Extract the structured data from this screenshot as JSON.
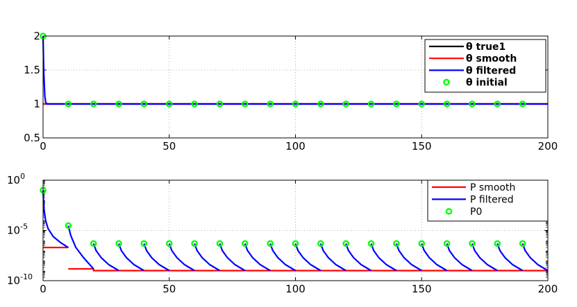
{
  "chart_data": [
    {
      "type": "line",
      "x_ticks": [
        "0",
        "50",
        "100",
        "150",
        "200"
      ],
      "y_ticks": [
        "0.5",
        "1",
        "1.5",
        "2"
      ],
      "xlim": [
        0,
        200
      ],
      "ylim": [
        0.5,
        2
      ],
      "grid": true,
      "legend_position": "top-right",
      "series": [
        {
          "name": "θ true1",
          "color": "#000000",
          "kind": "line",
          "points": [
            [
              0,
              1
            ],
            [
              200,
              1
            ]
          ]
        },
        {
          "name": "θ smooth",
          "color": "#ff0000",
          "kind": "line",
          "points": [
            [
              0,
              1
            ],
            [
              200,
              1
            ]
          ]
        },
        {
          "name": "θ filtered",
          "color": "#0000ff",
          "kind": "line",
          "points": [
            [
              0,
              2
            ],
            [
              0.3,
              1.45
            ],
            [
              0.7,
              1.12
            ],
            [
              1,
              1.03
            ],
            [
              1.5,
              1
            ],
            [
              200,
              1
            ]
          ]
        },
        {
          "name": "θ initial",
          "color": "#00ff00",
          "kind": "marker",
          "points": [
            [
              0,
              2
            ],
            [
              10,
              1
            ],
            [
              20,
              1
            ],
            [
              30,
              1
            ],
            [
              40,
              1
            ],
            [
              50,
              1
            ],
            [
              60,
              1
            ],
            [
              70,
              1
            ],
            [
              80,
              1
            ],
            [
              90,
              1
            ],
            [
              100,
              1
            ],
            [
              110,
              1
            ],
            [
              120,
              1
            ],
            [
              130,
              1
            ],
            [
              140,
              1
            ],
            [
              150,
              1
            ],
            [
              160,
              1
            ],
            [
              170,
              1
            ],
            [
              180,
              1
            ],
            [
              190,
              1
            ]
          ]
        }
      ]
    },
    {
      "type": "line",
      "y_scale": "log",
      "x_ticks": [
        "0",
        "50",
        "100",
        "150",
        "200"
      ],
      "y_ticks": [
        {
          "base": "10",
          "exp": "0"
        },
        {
          "base": "10",
          "exp": "-5"
        },
        {
          "base": "10",
          "exp": "-10"
        }
      ],
      "xlim": [
        0,
        200
      ],
      "ylim": [
        1e-10,
        1
      ],
      "grid": true,
      "legend_position": "top-right",
      "series": [
        {
          "name": "P smooth",
          "color": "#ff0000",
          "kind": "line",
          "segments": [
            [
              [
                0,
                2e-07
              ],
              [
                10,
                2e-07
              ]
            ],
            [
              [
                10,
                1.5e-09
              ],
              [
                20,
                1.5e-09
              ],
              [
                20,
                1e-09
              ],
              [
                200,
                1e-09
              ]
            ]
          ]
        },
        {
          "name": "P filtered",
          "color": "#0000ff",
          "kind": "line",
          "segments": [
            [
              [
                0,
                0.1
              ],
              [
                0.3,
                0.002
              ],
              [
                1,
                0.0001
              ],
              [
                2,
                1.5e-05
              ],
              [
                4,
                2.5e-06
              ],
              [
                7,
                6e-07
              ],
              [
                10,
                2e-07
              ]
            ],
            [
              [
                10,
                3e-05
              ],
              [
                11,
                3e-06
              ],
              [
                13,
                2e-07
              ],
              [
                16,
                2e-08
              ],
              [
                20,
                1.5e-09
              ]
            ],
            [
              [
                20,
                5e-07
              ],
              [
                21,
                1e-07
              ],
              [
                23,
                2e-08
              ],
              [
                26,
                4e-09
              ],
              [
                30,
                1e-09
              ]
            ],
            [
              [
                30,
                5e-07
              ],
              [
                31,
                1e-07
              ],
              [
                33,
                2e-08
              ],
              [
                36,
                4e-09
              ],
              [
                40,
                1e-09
              ]
            ],
            [
              [
                40,
                5e-07
              ],
              [
                41,
                1e-07
              ],
              [
                43,
                2e-08
              ],
              [
                46,
                4e-09
              ],
              [
                50,
                1e-09
              ]
            ],
            [
              [
                50,
                5e-07
              ],
              [
                51,
                1e-07
              ],
              [
                53,
                2e-08
              ],
              [
                56,
                4e-09
              ],
              [
                60,
                1e-09
              ]
            ],
            [
              [
                60,
                5e-07
              ],
              [
                61,
                1e-07
              ],
              [
                63,
                2e-08
              ],
              [
                66,
                4e-09
              ],
              [
                70,
                1e-09
              ]
            ],
            [
              [
                70,
                5e-07
              ],
              [
                71,
                1e-07
              ],
              [
                73,
                2e-08
              ],
              [
                76,
                4e-09
              ],
              [
                80,
                1e-09
              ]
            ],
            [
              [
                80,
                5e-07
              ],
              [
                81,
                1e-07
              ],
              [
                83,
                2e-08
              ],
              [
                86,
                4e-09
              ],
              [
                90,
                1e-09
              ]
            ],
            [
              [
                90,
                5e-07
              ],
              [
                91,
                1e-07
              ],
              [
                93,
                2e-08
              ],
              [
                96,
                4e-09
              ],
              [
                100,
                1e-09
              ]
            ],
            [
              [
                100,
                5e-07
              ],
              [
                101,
                1e-07
              ],
              [
                103,
                2e-08
              ],
              [
                106,
                4e-09
              ],
              [
                110,
                1e-09
              ]
            ],
            [
              [
                110,
                5e-07
              ],
              [
                111,
                1e-07
              ],
              [
                113,
                2e-08
              ],
              [
                116,
                4e-09
              ],
              [
                120,
                1e-09
              ]
            ],
            [
              [
                120,
                5e-07
              ],
              [
                121,
                1e-07
              ],
              [
                123,
                2e-08
              ],
              [
                126,
                4e-09
              ],
              [
                130,
                1e-09
              ]
            ],
            [
              [
                130,
                5e-07
              ],
              [
                131,
                1e-07
              ],
              [
                133,
                2e-08
              ],
              [
                136,
                4e-09
              ],
              [
                140,
                1e-09
              ]
            ],
            [
              [
                140,
                5e-07
              ],
              [
                141,
                1e-07
              ],
              [
                143,
                2e-08
              ],
              [
                146,
                4e-09
              ],
              [
                150,
                1e-09
              ]
            ],
            [
              [
                150,
                5e-07
              ],
              [
                151,
                1e-07
              ],
              [
                153,
                2e-08
              ],
              [
                156,
                4e-09
              ],
              [
                160,
                1e-09
              ]
            ],
            [
              [
                160,
                5e-07
              ],
              [
                161,
                1e-07
              ],
              [
                163,
                2e-08
              ],
              [
                166,
                4e-09
              ],
              [
                170,
                1e-09
              ]
            ],
            [
              [
                170,
                5e-07
              ],
              [
                171,
                1e-07
              ],
              [
                173,
                2e-08
              ],
              [
                176,
                4e-09
              ],
              [
                180,
                1e-09
              ]
            ],
            [
              [
                180,
                5e-07
              ],
              [
                181,
                1e-07
              ],
              [
                183,
                2e-08
              ],
              [
                186,
                4e-09
              ],
              [
                190,
                1e-09
              ]
            ],
            [
              [
                190,
                5e-07
              ],
              [
                191,
                1e-07
              ],
              [
                193,
                2e-08
              ],
              [
                196,
                4e-09
              ],
              [
                200,
                1e-09
              ]
            ]
          ]
        },
        {
          "name": "P0",
          "color": "#00ff00",
          "kind": "marker",
          "points": [
            [
              0,
              0.1
            ],
            [
              10,
              3e-05
            ],
            [
              20,
              5e-07
            ],
            [
              30,
              5e-07
            ],
            [
              40,
              5e-07
            ],
            [
              50,
              5e-07
            ],
            [
              60,
              5e-07
            ],
            [
              70,
              5e-07
            ],
            [
              80,
              5e-07
            ],
            [
              90,
              5e-07
            ],
            [
              100,
              5e-07
            ],
            [
              110,
              5e-07
            ],
            [
              120,
              5e-07
            ],
            [
              130,
              5e-07
            ],
            [
              140,
              5e-07
            ],
            [
              150,
              5e-07
            ],
            [
              160,
              5e-07
            ],
            [
              170,
              5e-07
            ],
            [
              180,
              5e-07
            ],
            [
              190,
              5e-07
            ]
          ]
        }
      ]
    }
  ]
}
